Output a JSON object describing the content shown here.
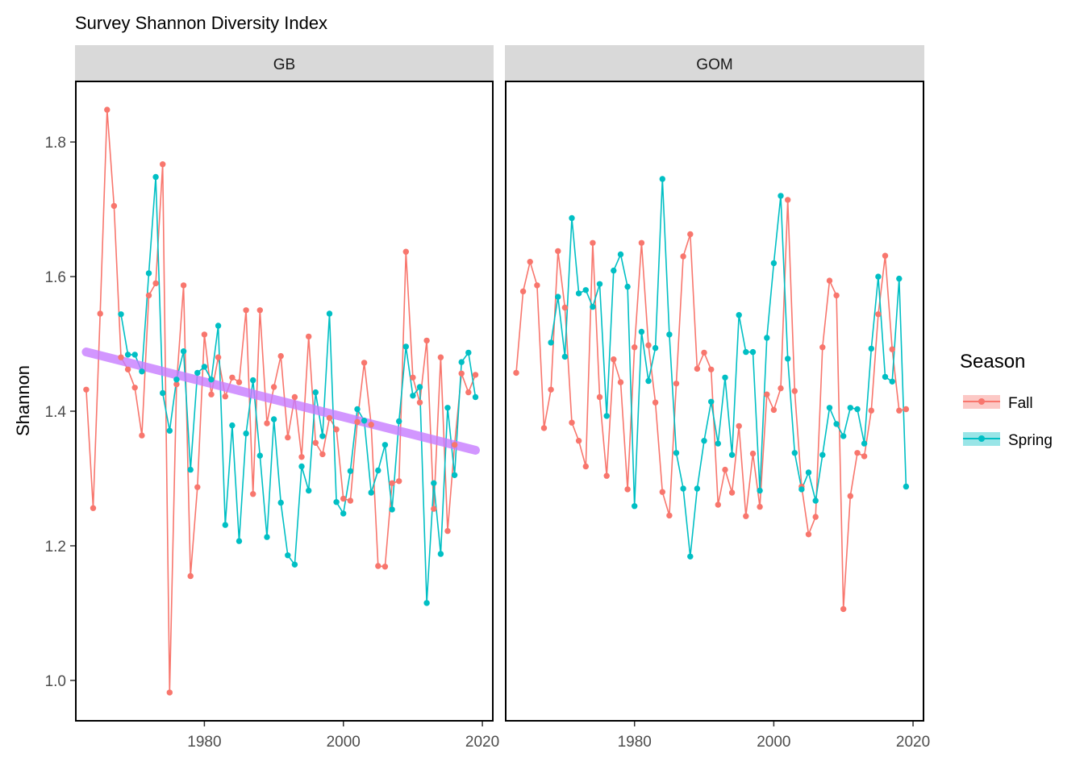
{
  "chart_data": {
    "type": "line",
    "title": "Survey Shannon Diversity Index",
    "ylabel": "Shannon",
    "xlabel": "",
    "xlim": [
      1961.5,
      2021.5
    ],
    "ylim": [
      0.94,
      1.89
    ],
    "x_ticks": [
      1980,
      2000,
      2020
    ],
    "y_ticks": [
      1.0,
      1.2,
      1.4,
      1.6,
      1.8
    ],
    "y_tick_labels": [
      "1.0",
      "1.2",
      "1.4",
      "1.6",
      "1.8"
    ],
    "grid": false,
    "legend": {
      "title": "Season",
      "position": "right",
      "entries": [
        {
          "name": "Fall",
          "color": "#F8766D"
        },
        {
          "name": "Spring",
          "color": "#00BFC4"
        }
      ]
    },
    "trend_color": "#C77CFF",
    "panels": [
      {
        "name": "GB",
        "trend": {
          "x": [
            1963,
            2019
          ],
          "y": [
            1.488,
            1.342
          ]
        },
        "series": [
          {
            "name": "Fall",
            "color": "#F8766D",
            "x": [
              1963,
              1964,
              1965,
              1966,
              1967,
              1968,
              1969,
              1970,
              1971,
              1972,
              1973,
              1974,
              1975,
              1976,
              1977,
              1978,
              1979,
              1980,
              1981,
              1982,
              1983,
              1984,
              1985,
              1986,
              1987,
              1988,
              1989,
              1990,
              1991,
              1992,
              1993,
              1994,
              1995,
              1996,
              1997,
              1998,
              1999,
              2000,
              2001,
              2002,
              2003,
              2004,
              2005,
              2006,
              2007,
              2008,
              2009,
              2010,
              2011,
              2012,
              2013,
              2014,
              2015,
              2016,
              2017,
              2018,
              2019
            ],
            "y": [
              1.432,
              1.256,
              1.545,
              1.848,
              1.705,
              1.48,
              1.462,
              1.435,
              1.364,
              1.572,
              1.59,
              1.767,
              0.982,
              1.44,
              1.587,
              1.155,
              1.287,
              1.514,
              1.425,
              1.48,
              1.422,
              1.45,
              1.443,
              1.55,
              1.277,
              1.55,
              1.382,
              1.436,
              1.482,
              1.361,
              1.421,
              1.332,
              1.511,
              1.353,
              1.336,
              1.39,
              1.373,
              1.27,
              1.267,
              1.384,
              1.472,
              1.38,
              1.17,
              1.169,
              1.293,
              1.296,
              1.637,
              1.45,
              1.413,
              1.505,
              1.255,
              1.48,
              1.222,
              1.35,
              1.456,
              1.428,
              1.454
            ]
          },
          {
            "name": "Spring",
            "color": "#00BFC4",
            "x": [
              1968,
              1969,
              1970,
              1971,
              1972,
              1973,
              1974,
              1975,
              1976,
              1977,
              1978,
              1979,
              1980,
              1981,
              1982,
              1983,
              1984,
              1985,
              1986,
              1987,
              1988,
              1989,
              1990,
              1991,
              1992,
              1993,
              1994,
              1995,
              1996,
              1997,
              1998,
              1999,
              2000,
              2001,
              2002,
              2003,
              2004,
              2005,
              2006,
              2007,
              2008,
              2009,
              2010,
              2011,
              2012,
              2013,
              2014,
              2015,
              2016,
              2017,
              2018,
              2019
            ],
            "y": [
              1.544,
              1.484,
              1.484,
              1.459,
              1.605,
              1.748,
              1.427,
              1.371,
              1.447,
              1.489,
              1.313,
              1.457,
              1.466,
              1.447,
              1.527,
              1.231,
              1.379,
              1.207,
              1.367,
              1.446,
              1.334,
              1.213,
              1.388,
              1.264,
              1.186,
              1.172,
              1.318,
              1.282,
              1.428,
              1.363,
              1.545,
              1.265,
              1.248,
              1.311,
              1.403,
              1.386,
              1.279,
              1.312,
              1.35,
              1.254,
              1.385,
              1.496,
              1.423,
              1.436,
              1.115,
              1.293,
              1.188,
              1.405,
              1.305,
              1.473,
              1.487,
              1.421
            ]
          }
        ]
      },
      {
        "name": "GOM",
        "series": [
          {
            "name": "Fall",
            "color": "#F8766D",
            "x": [
              1963,
              1964,
              1965,
              1966,
              1967,
              1968,
              1969,
              1970,
              1971,
              1972,
              1973,
              1974,
              1975,
              1976,
              1977,
              1978,
              1979,
              1980,
              1981,
              1982,
              1983,
              1984,
              1985,
              1986,
              1987,
              1988,
              1989,
              1990,
              1991,
              1992,
              1993,
              1994,
              1995,
              1996,
              1997,
              1998,
              1999,
              2000,
              2001,
              2002,
              2003,
              2004,
              2005,
              2006,
              2007,
              2008,
              2009,
              2010,
              2011,
              2012,
              2013,
              2014,
              2015,
              2016,
              2017,
              2018,
              2019
            ],
            "y": [
              1.457,
              1.578,
              1.622,
              1.587,
              1.375,
              1.432,
              1.638,
              1.554,
              1.383,
              1.356,
              1.318,
              1.65,
              1.421,
              1.304,
              1.477,
              1.443,
              1.284,
              1.495,
              1.65,
              1.498,
              1.413,
              1.28,
              1.245,
              1.441,
              1.63,
              1.663,
              1.463,
              1.487,
              1.462,
              1.261,
              1.313,
              1.279,
              1.378,
              1.244,
              1.337,
              1.258,
              1.425,
              1.402,
              1.434,
              1.714,
              1.43,
              1.288,
              1.217,
              1.243,
              1.495,
              1.594,
              1.572,
              1.106,
              1.274,
              1.338,
              1.333,
              1.401,
              1.544,
              1.631,
              1.492,
              1.401,
              1.403
            ]
          },
          {
            "name": "Spring",
            "color": "#00BFC4",
            "x": [
              1968,
              1969,
              1970,
              1971,
              1972,
              1973,
              1974,
              1975,
              1976,
              1977,
              1978,
              1979,
              1980,
              1981,
              1982,
              1983,
              1984,
              1985,
              1986,
              1987,
              1988,
              1989,
              1990,
              1991,
              1992,
              1993,
              1994,
              1995,
              1996,
              1997,
              1998,
              1999,
              2000,
              2001,
              2002,
              2003,
              2004,
              2005,
              2006,
              2007,
              2008,
              2009,
              2010,
              2011,
              2012,
              2013,
              2014,
              2015,
              2016,
              2017,
              2018,
              2019
            ],
            "y": [
              1.502,
              1.57,
              1.481,
              1.687,
              1.575,
              1.58,
              1.555,
              1.589,
              1.393,
              1.609,
              1.633,
              1.585,
              1.259,
              1.518,
              1.445,
              1.494,
              1.745,
              1.514,
              1.338,
              1.285,
              1.184,
              1.285,
              1.356,
              1.414,
              1.352,
              1.45,
              1.335,
              1.543,
              1.488,
              1.488,
              1.282,
              1.509,
              1.62,
              1.72,
              1.478,
              1.338,
              1.284,
              1.309,
              1.267,
              1.335,
              1.405,
              1.381,
              1.363,
              1.405,
              1.403,
              1.352,
              1.493,
              1.6,
              1.451,
              1.444,
              1.597,
              1.288
            ]
          }
        ]
      }
    ]
  }
}
